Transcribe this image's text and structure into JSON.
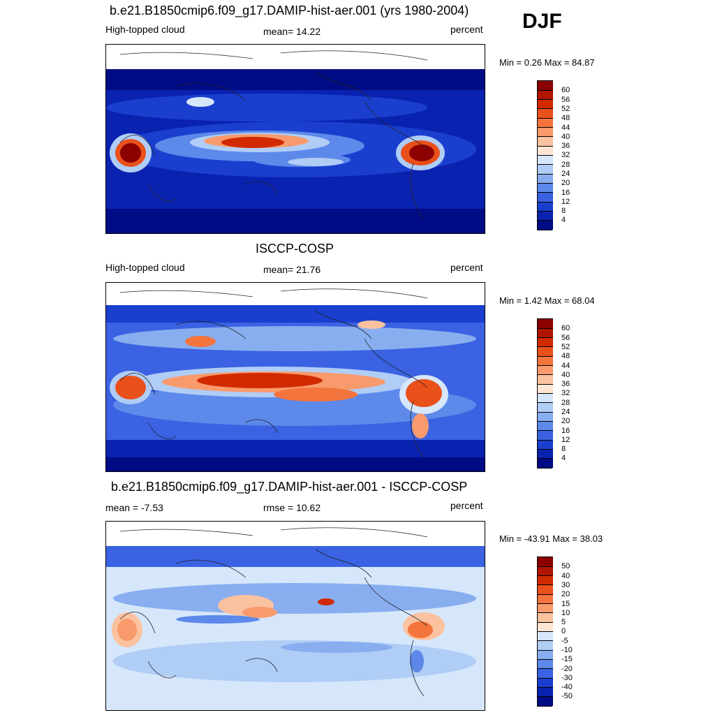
{
  "season": "DJF",
  "panels": [
    {
      "title": "b.e21.B1850cmip6.f09_g17.DAMIP-hist-aer.001 (yrs 1980-2004)",
      "left_label": "High-topped cloud",
      "center_label": "mean=  14.22",
      "units": "percent",
      "minmax": "Min =   0.26 Max =  84.87",
      "colorbar_labels": [
        "60",
        "56",
        "52",
        "48",
        "44",
        "40",
        "36",
        "32",
        "28",
        "24",
        "20",
        "16",
        "12",
        "8",
        "4"
      ],
      "colors": [
        "#8b0000",
        "#b01500",
        "#d12a00",
        "#e9501a",
        "#f4743d",
        "#f89a6b",
        "#fbc2a0",
        "#fde7d4",
        "#d6e7fb",
        "#b0cdf6",
        "#88aef0",
        "#5d89ea",
        "#3a62e2",
        "#1a3fcf",
        "#0a22b0",
        "#000c85"
      ]
    },
    {
      "title": "ISCCP-COSP",
      "left_label": "High-topped cloud",
      "center_label": "mean=  21.76",
      "units": "percent",
      "minmax": "Min =   1.42 Max =  68.04",
      "colorbar_labels": [
        "60",
        "56",
        "52",
        "48",
        "44",
        "40",
        "36",
        "32",
        "28",
        "24",
        "20",
        "16",
        "12",
        "8",
        "4"
      ],
      "colors": [
        "#8b0000",
        "#b01500",
        "#d12a00",
        "#e9501a",
        "#f4743d",
        "#f89a6b",
        "#fbc2a0",
        "#fde7d4",
        "#d6e7fb",
        "#b0cdf6",
        "#88aef0",
        "#5d89ea",
        "#3a62e2",
        "#1a3fcf",
        "#0a22b0",
        "#000c85"
      ]
    },
    {
      "title": "b.e21.B1850cmip6.f09_g17.DAMIP-hist-aer.001 - ISCCP-COSP",
      "left_label": "mean =  -7.53",
      "center_label": "rmse =  10.62",
      "units": "percent",
      "minmax": "Min = -43.91 Max =  38.03",
      "colorbar_labels": [
        "50",
        "40",
        "30",
        "20",
        "15",
        "10",
        "5",
        "0",
        "-5",
        "-10",
        "-15",
        "-20",
        "-30",
        "-40",
        "-50"
      ],
      "colors": [
        "#8b0000",
        "#b01500",
        "#d12a00",
        "#e9501a",
        "#f4743d",
        "#f89a6b",
        "#fbc2a0",
        "#fde7d4",
        "#d6e7fb",
        "#b0cdf6",
        "#88aef0",
        "#5d89ea",
        "#3a62e2",
        "#1a3fcf",
        "#0a22b0",
        "#000c85"
      ]
    }
  ]
}
